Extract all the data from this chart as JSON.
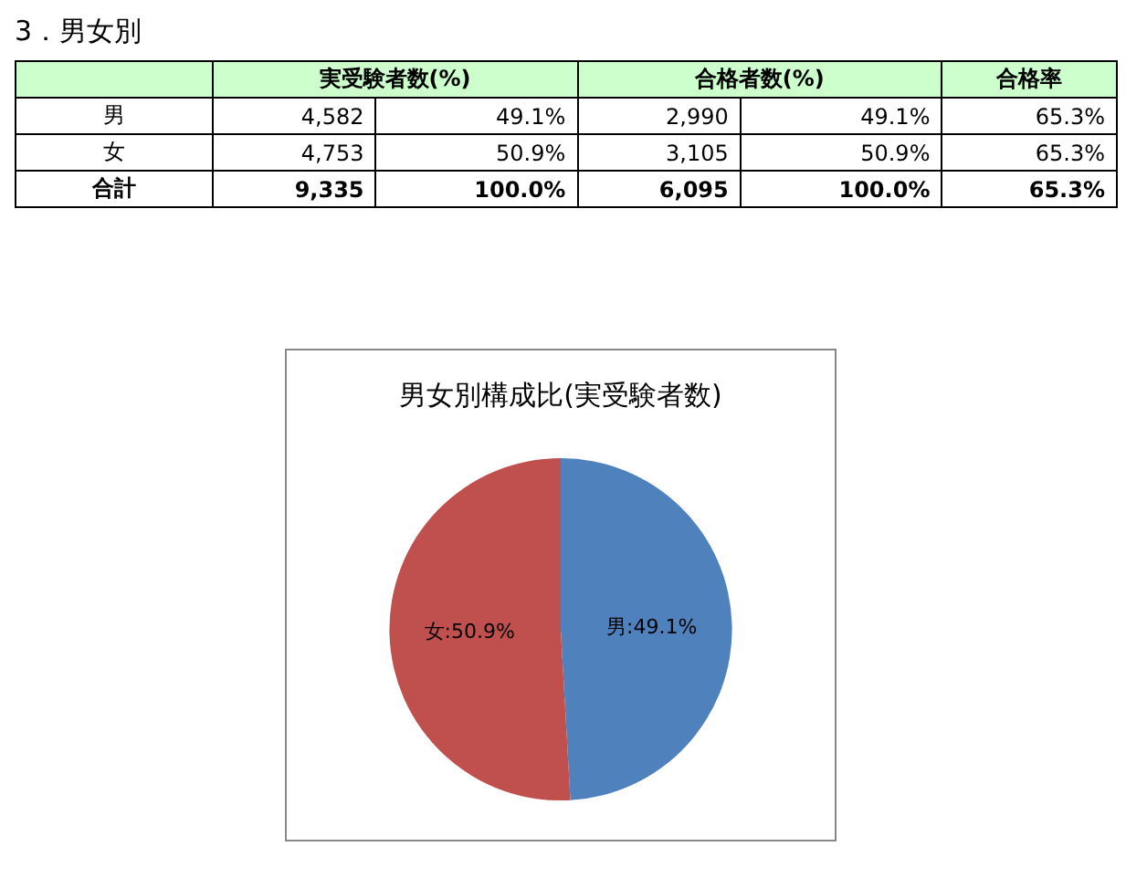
{
  "chart_data": [
    {
      "type": "other",
      "title": "3．男女別",
      "categories": [
        null,
        "実受験者数(%)",
        "合格者数(%)",
        "合格率"
      ],
      "y_categories": [
        "男",
        "女",
        "合計"
      ],
      "cell_labels": [
        [
          "4,582",
          "49.1%",
          "2,990",
          "49.1%",
          "65.3%"
        ],
        [
          "4,753",
          "50.9%",
          "3,105",
          "50.9%",
          "65.3%"
        ],
        [
          "9,335",
          "100.0%",
          "6,095",
          "100.0%",
          "65.3%"
        ]
      ]
    },
    {
      "type": "pie",
      "title": "男女別構成比(実受験者数)",
      "categories": [
        "男",
        "女"
      ],
      "values": [
        49.1,
        50.9
      ],
      "colors": [
        "#4f81bd",
        "#c0504d"
      ],
      "value_labels": [
        ":49.1%",
        ":50.9%"
      ]
    }
  ]
}
